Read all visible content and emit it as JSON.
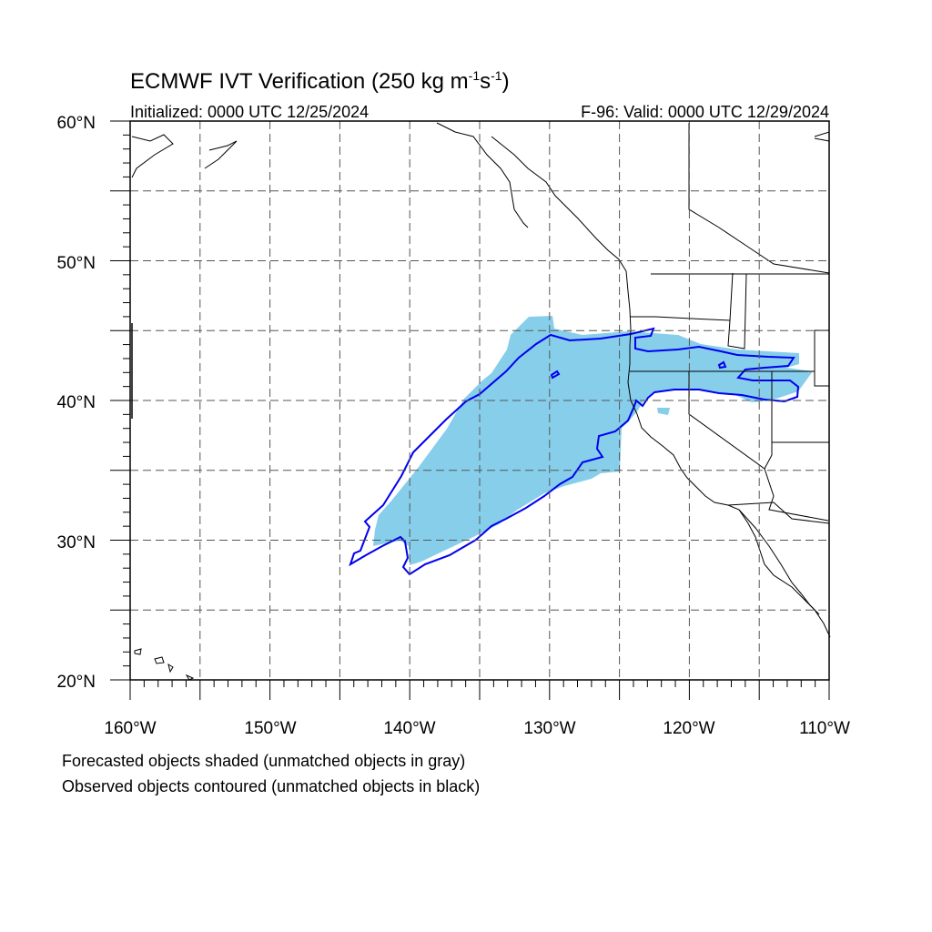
{
  "title": {
    "main": "ECMWF IVT Verification (250 kg m",
    "sup1": "-1",
    "mid": "s",
    "sup2": "-1",
    "end": ")"
  },
  "subtitle": {
    "initialized": "Initialized: 0000 UTC 12/25/2024",
    "valid": "F-96: Valid: 0000 UTC 12/29/2024"
  },
  "map": {
    "lon_range": [
      -160,
      -110
    ],
    "lat_range": [
      20,
      60
    ],
    "grid_step": 5,
    "lat_labels": [
      "60°N",
      "50°N",
      "40°N",
      "30°N",
      "20°N"
    ],
    "lon_labels": [
      "160°W",
      "150°W",
      "140°W",
      "130°W",
      "120°W",
      "110°W"
    ]
  },
  "legend": {
    "line1": "Forecasted objects shaded (unmatched objects in gray)",
    "line2": "Observed objects contoured (unmatched objects in black)"
  },
  "colors": {
    "forecast_fill": "#87ceeb",
    "observed_contour": "#0000ee",
    "coastline": "#000000",
    "grid": "#555555"
  }
}
